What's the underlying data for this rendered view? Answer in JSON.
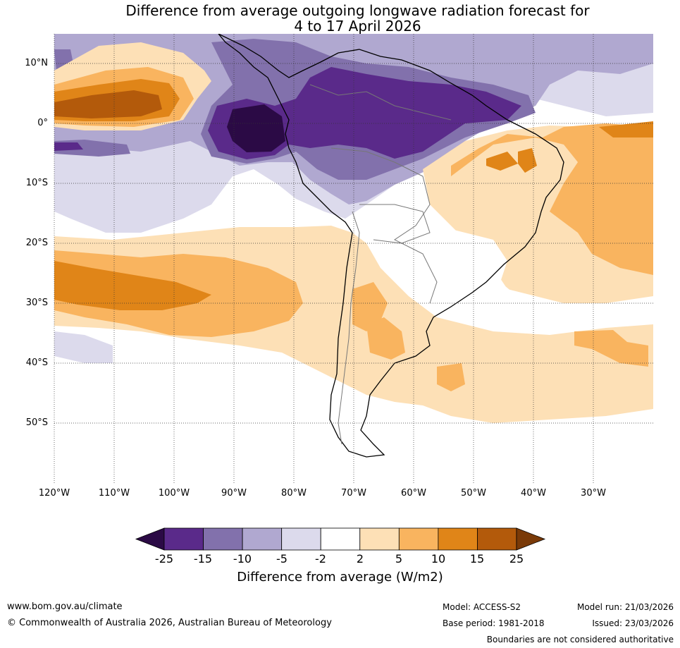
{
  "title_line1": "Difference from average outgoing longwave radiation forecast for",
  "title_line2": "4 to 17 April 2026",
  "map": {
    "lat_labels": [
      "10°N",
      "0°",
      "10°S",
      "20°S",
      "30°S",
      "40°S",
      "50°S"
    ],
    "lon_labels": [
      "120°W",
      "110°W",
      "100°W",
      "90°W",
      "80°W",
      "70°W",
      "60°W",
      "50°W",
      "40°W",
      "30°W"
    ],
    "lat_range": [
      -60,
      15
    ],
    "lon_range": [
      -120,
      -20
    ]
  },
  "colorbar": {
    "ticks": [
      "-25",
      "-15",
      "-10",
      "-5",
      "-2",
      "2",
      "5",
      "10",
      "15",
      "25"
    ],
    "colors": [
      "#2b0a45",
      "#5a2a8a",
      "#8271ac",
      "#b0a8d0",
      "#dcdaec",
      "#ffffff",
      "#fde0b6",
      "#f9b45f",
      "#e08518",
      "#b35a0b",
      "#7a3a08"
    ],
    "label": "Difference from average (W/m2)"
  },
  "footer": {
    "website": "www.bom.gov.au/climate",
    "copyright": "© Commonwealth of Australia 2026, Australian Bureau of Meteorology",
    "model": "Model: ACCESS-S2",
    "base_period": "Base period: 1981-2018",
    "model_run": "Model run: 21/03/2026",
    "issued": "Issued: 23/03/2026",
    "disclaimer": "Boundaries are not considered authoritative"
  }
}
